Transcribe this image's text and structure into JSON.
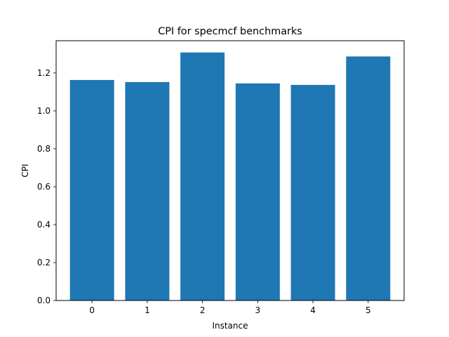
{
  "chart_data": {
    "type": "bar",
    "title": "CPI for specmcf benchmarks",
    "xlabel": "Instance",
    "ylabel": "CPI",
    "categories": [
      "0",
      "1",
      "2",
      "3",
      "4",
      "5"
    ],
    "values": [
      1.163,
      1.152,
      1.308,
      1.145,
      1.137,
      1.287
    ],
    "ylim": [
      0,
      1.37
    ],
    "yticks": [
      0.0,
      0.2,
      0.4,
      0.6,
      0.8,
      1.0,
      1.2
    ],
    "ytick_labels": [
      "0.0",
      "0.2",
      "0.4",
      "0.6",
      "0.8",
      "1.0",
      "1.2"
    ],
    "grid": false,
    "bar_color": "#1f77b4"
  }
}
